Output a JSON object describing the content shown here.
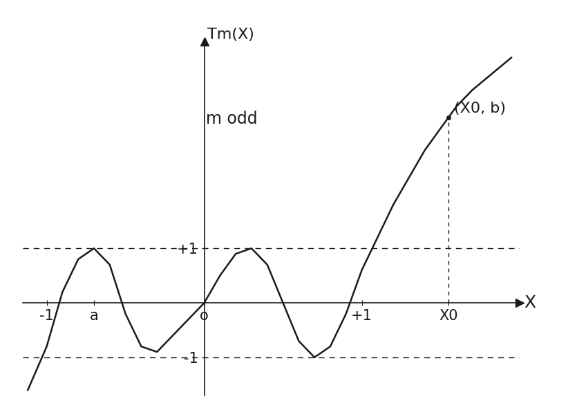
{
  "chart_data": {
    "type": "line",
    "xlabel": "X",
    "ylabel": "Tm(X)",
    "x": [
      -1.12,
      -1.0,
      -0.9,
      -0.8,
      -0.7,
      -0.6,
      -0.5,
      -0.4,
      -0.3,
      -0.2,
      -0.1,
      0,
      0.1,
      0.2,
      0.3,
      0.4,
      0.5,
      0.6,
      0.7,
      0.8,
      0.9,
      1.0,
      1.1,
      1.2,
      1.3,
      1.4,
      1.5,
      1.6,
      1.7,
      1.95
    ],
    "values": [
      -1.6,
      -0.8,
      0.2,
      0.8,
      1.0,
      0.7,
      -0.2,
      -0.8,
      -0.9,
      -0.6,
      -0.3,
      0,
      0.5,
      0.9,
      1.0,
      0.7,
      0.0,
      -0.7,
      -1.0,
      -0.8,
      -0.2,
      0.6,
      1.2,
      1.8,
      2.3,
      2.8,
      3.2,
      3.6,
      3.9,
      4.5
    ],
    "color": "#1a1a1a",
    "xlim": [
      -1.15,
      2.0
    ],
    "ylim": [
      -1.7,
      4.8
    ],
    "xticks": [
      {
        "value": -1,
        "label": "-1"
      },
      {
        "value": -0.7,
        "label": "a"
      },
      {
        "value": 0,
        "label": "o"
      },
      {
        "value": 1,
        "label": "+1"
      },
      {
        "value": 1.55,
        "label": "X0"
      }
    ],
    "yticks": [
      {
        "value": 1,
        "label": "+1"
      },
      {
        "value": -1,
        "label": "-1"
      }
    ],
    "grid": true,
    "annotations": [
      {
        "text": "m odd"
      },
      {
        "text": "(X0, b)",
        "x": 1.55,
        "y": 3.4
      }
    ]
  }
}
